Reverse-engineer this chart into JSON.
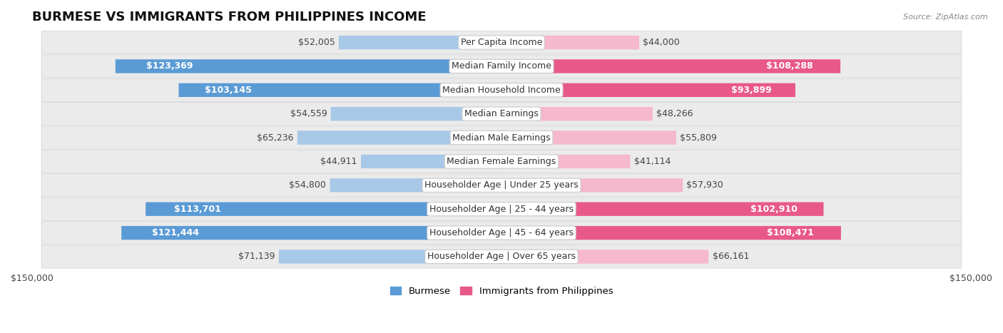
{
  "title": "BURMESE VS IMMIGRANTS FROM PHILIPPINES INCOME",
  "source": "Source: ZipAtlas.com",
  "categories": [
    "Per Capita Income",
    "Median Family Income",
    "Median Household Income",
    "Median Earnings",
    "Median Male Earnings",
    "Median Female Earnings",
    "Householder Age | Under 25 years",
    "Householder Age | 25 - 44 years",
    "Householder Age | 45 - 64 years",
    "Householder Age | Over 65 years"
  ],
  "burmese_values": [
    52005,
    123369,
    103145,
    54559,
    65236,
    44911,
    54800,
    113701,
    121444,
    71139
  ],
  "philippines_values": [
    44000,
    108288,
    93899,
    48266,
    55809,
    41114,
    57930,
    102910,
    108471,
    66161
  ],
  "burmese_labels": [
    "$52,005",
    "$123,369",
    "$103,145",
    "$54,559",
    "$65,236",
    "$44,911",
    "$54,800",
    "$113,701",
    "$121,444",
    "$71,139"
  ],
  "philippines_labels": [
    "$44,000",
    "$108,288",
    "$93,899",
    "$48,266",
    "$55,809",
    "$41,114",
    "$57,930",
    "$102,910",
    "$108,471",
    "$66,161"
  ],
  "burmese_color_light": "#a8c8e8",
  "burmese_color_dark": "#5b9bd5",
  "philippines_color_light": "#f5b8cc",
  "philippines_color_dark": "#e8598a",
  "burmese_label_inside": [
    false,
    true,
    true,
    false,
    false,
    false,
    false,
    true,
    true,
    false
  ],
  "philippines_label_inside": [
    false,
    true,
    true,
    false,
    false,
    false,
    false,
    true,
    true,
    false
  ],
  "max_value": 150000,
  "legend_burmese": "Burmese",
  "legend_philippines": "Immigrants from Philippines",
  "bar_height": 0.58,
  "title_fontsize": 13,
  "label_fontsize": 9,
  "category_fontsize": 9,
  "axis_label_fontsize": 9
}
